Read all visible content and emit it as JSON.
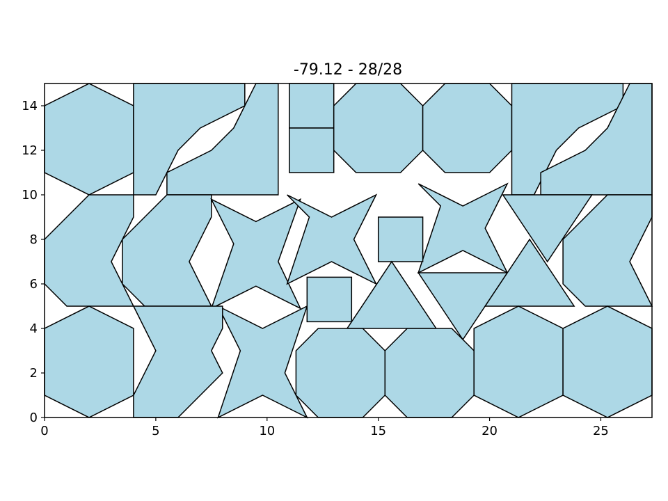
{
  "chart_data": {
    "type": "polygon-packing",
    "title": "-79.12 - 28/28",
    "xlabel": "",
    "ylabel": "",
    "xlim": [
      0,
      27.3
    ],
    "ylim": [
      0,
      15
    ],
    "xticks": [
      0,
      5,
      10,
      15,
      20,
      25
    ],
    "yticks": [
      0,
      2,
      4,
      6,
      8,
      10,
      12,
      14
    ],
    "grid": false,
    "colors": {
      "fill": "#add8e6",
      "edge": "#000000"
    },
    "shapes": [
      {
        "kind": "hexagon",
        "points": [
          [
            0,
            11
          ],
          [
            0,
            14
          ],
          [
            2,
            15
          ],
          [
            4,
            14
          ],
          [
            4,
            11
          ],
          [
            2,
            10
          ]
        ]
      },
      {
        "kind": "lshape",
        "points": [
          [
            4,
            15
          ],
          [
            9,
            15
          ],
          [
            9,
            14
          ],
          [
            7,
            13
          ],
          [
            6,
            12
          ],
          [
            5,
            10
          ],
          [
            4,
            10
          ]
        ]
      },
      {
        "kind": "lshape",
        "points": [
          [
            5.5,
            10
          ],
          [
            10.5,
            10
          ],
          [
            10.5,
            15
          ],
          [
            9.5,
            15
          ],
          [
            9,
            14
          ],
          [
            8.5,
            13
          ],
          [
            7.5,
            12
          ],
          [
            5.5,
            11
          ]
        ]
      },
      {
        "kind": "square",
        "points": [
          [
            11,
            13
          ],
          [
            13,
            13
          ],
          [
            13,
            15
          ],
          [
            11,
            15
          ]
        ]
      },
      {
        "kind": "square",
        "points": [
          [
            11,
            11
          ],
          [
            13,
            11
          ],
          [
            13,
            13
          ],
          [
            11,
            13
          ]
        ]
      },
      {
        "kind": "octagon",
        "points": [
          [
            13,
            12
          ],
          [
            14,
            11
          ],
          [
            16,
            11
          ],
          [
            17,
            12
          ],
          [
            17,
            14
          ],
          [
            16,
            15
          ],
          [
            14,
            15
          ],
          [
            13,
            14
          ]
        ]
      },
      {
        "kind": "octagon",
        "points": [
          [
            17,
            12
          ],
          [
            18,
            11
          ],
          [
            20,
            11
          ],
          [
            21,
            12
          ],
          [
            21,
            14
          ],
          [
            20,
            15
          ],
          [
            18,
            15
          ],
          [
            17,
            14
          ]
        ]
      },
      {
        "kind": "lshape",
        "points": [
          [
            21,
            15
          ],
          [
            26,
            15
          ],
          [
            26,
            14
          ],
          [
            24,
            13
          ],
          [
            23,
            12
          ],
          [
            22,
            10
          ],
          [
            21,
            10
          ]
        ]
      },
      {
        "kind": "lshape",
        "points": [
          [
            22.3,
            10
          ],
          [
            27.3,
            10
          ],
          [
            27.3,
            15
          ],
          [
            26.3,
            15
          ],
          [
            25.8,
            14
          ],
          [
            25.3,
            13
          ],
          [
            24.3,
            12
          ],
          [
            22.3,
            11
          ]
        ]
      },
      {
        "kind": "chevron",
        "points": [
          [
            0,
            8
          ],
          [
            2,
            10
          ],
          [
            4,
            10
          ],
          [
            4,
            9
          ],
          [
            3,
            7
          ],
          [
            4,
            5
          ],
          [
            1,
            5
          ],
          [
            0,
            6
          ]
        ]
      },
      {
        "kind": "chevron",
        "points": [
          [
            3.5,
            8
          ],
          [
            5.5,
            10
          ],
          [
            7.5,
            10
          ],
          [
            7.5,
            9
          ],
          [
            6.5,
            7
          ],
          [
            7.5,
            5
          ],
          [
            4.5,
            5
          ],
          [
            3.5,
            6
          ]
        ]
      },
      {
        "kind": "chevron",
        "points": [
          [
            23.3,
            8
          ],
          [
            25.3,
            10
          ],
          [
            27.3,
            10
          ],
          [
            27.3,
            9
          ],
          [
            26.3,
            7
          ],
          [
            27.3,
            5
          ],
          [
            24.3,
            5
          ],
          [
            23.3,
            6
          ]
        ]
      },
      {
        "kind": "star",
        "points": [
          [
            7.5,
            9.8
          ],
          [
            9.5,
            8.8
          ],
          [
            11.5,
            9.8
          ],
          [
            10.5,
            7
          ],
          [
            11.5,
            4.9
          ],
          [
            9.5,
            5.9
          ],
          [
            7.5,
            4.9
          ],
          [
            8.5,
            7.8
          ]
        ]
      },
      {
        "kind": "star",
        "points": [
          [
            10.9,
            10
          ],
          [
            12.9,
            9
          ],
          [
            14.9,
            10
          ],
          [
            13.9,
            8
          ],
          [
            14.9,
            6
          ],
          [
            12.9,
            7
          ],
          [
            10.9,
            6
          ],
          [
            11.9,
            9
          ]
        ]
      },
      {
        "kind": "star",
        "points": [
          [
            16.8,
            10.5
          ],
          [
            18.8,
            9.5
          ],
          [
            20.8,
            10.5
          ],
          [
            19.8,
            8.5
          ],
          [
            20.8,
            6.5
          ],
          [
            18.8,
            7.5
          ],
          [
            16.8,
            6.5
          ],
          [
            17.8,
            9.5
          ]
        ]
      },
      {
        "kind": "star",
        "points": [
          [
            7.8,
            5
          ],
          [
            9.8,
            4
          ],
          [
            11.8,
            5
          ],
          [
            10.8,
            2
          ],
          [
            11.8,
            0
          ],
          [
            9.8,
            1
          ],
          [
            7.8,
            0
          ],
          [
            8.8,
            3
          ]
        ]
      },
      {
        "kind": "square",
        "points": [
          [
            15,
            7
          ],
          [
            17,
            7
          ],
          [
            17,
            9
          ],
          [
            15,
            9
          ]
        ]
      },
      {
        "kind": "square",
        "points": [
          [
            11.8,
            4.3
          ],
          [
            13.8,
            4.3
          ],
          [
            13.8,
            6.3
          ],
          [
            11.8,
            6.3
          ]
        ]
      },
      {
        "kind": "triangle",
        "points": [
          [
            20.6,
            10
          ],
          [
            24.6,
            10
          ],
          [
            22.6,
            7
          ]
        ]
      },
      {
        "kind": "triangle",
        "points": [
          [
            13.6,
            4
          ],
          [
            17.6,
            4
          ],
          [
            15.6,
            7
          ]
        ]
      },
      {
        "kind": "triangle",
        "points": [
          [
            16.8,
            6.5
          ],
          [
            20.8,
            6.5
          ],
          [
            18.8,
            3.5
          ]
        ]
      },
      {
        "kind": "triangle",
        "points": [
          [
            19.8,
            5
          ],
          [
            23.8,
            5
          ],
          [
            21.8,
            8
          ]
        ]
      },
      {
        "kind": "hexagon",
        "points": [
          [
            0,
            1
          ],
          [
            0,
            4
          ],
          [
            2,
            5
          ],
          [
            4,
            4
          ],
          [
            4,
            1
          ],
          [
            2,
            0
          ]
        ]
      },
      {
        "kind": "chevron",
        "points": [
          [
            4,
            5
          ],
          [
            8,
            5
          ],
          [
            8,
            4
          ],
          [
            7.5,
            3
          ],
          [
            8,
            2
          ],
          [
            6,
            0
          ],
          [
            4,
            0
          ],
          [
            4,
            1
          ],
          [
            5,
            3
          ]
        ]
      },
      {
        "kind": "octagon",
        "points": [
          [
            11.3,
            1
          ],
          [
            12.3,
            0
          ],
          [
            14.3,
            0
          ],
          [
            15.3,
            1
          ],
          [
            15.3,
            3
          ],
          [
            14.3,
            4
          ],
          [
            12.3,
            4
          ],
          [
            11.3,
            3
          ]
        ]
      },
      {
        "kind": "octagon",
        "points": [
          [
            15.3,
            1
          ],
          [
            16.3,
            0
          ],
          [
            18.3,
            0
          ],
          [
            19.3,
            1
          ],
          [
            19.3,
            3
          ],
          [
            18.3,
            4
          ],
          [
            16.3,
            4
          ],
          [
            15.3,
            3
          ]
        ]
      },
      {
        "kind": "hexagon",
        "points": [
          [
            19.3,
            1
          ],
          [
            19.3,
            4
          ],
          [
            21.3,
            5
          ],
          [
            23.3,
            4
          ],
          [
            23.3,
            1
          ],
          [
            21.3,
            0
          ]
        ]
      },
      {
        "kind": "hexagon",
        "points": [
          [
            23.3,
            1
          ],
          [
            23.3,
            4
          ],
          [
            25.3,
            5
          ],
          [
            27.3,
            4
          ],
          [
            27.3,
            1
          ],
          [
            25.3,
            0
          ]
        ]
      }
    ]
  }
}
